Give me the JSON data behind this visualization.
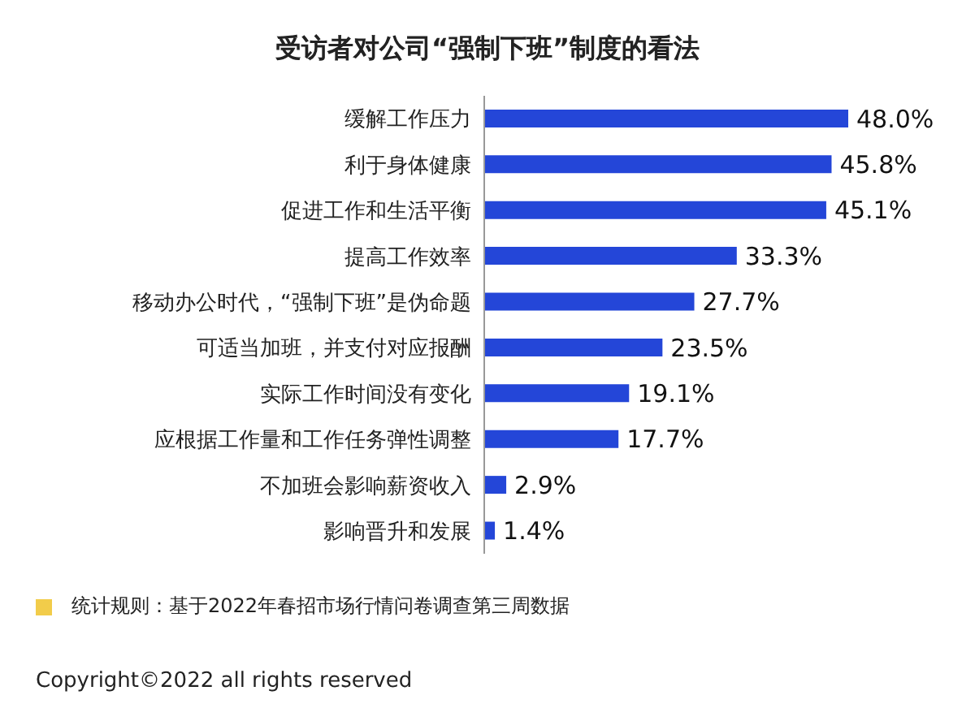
{
  "chart_data": {
    "type": "bar",
    "orientation": "horizontal",
    "title": "受访者对公司“强制下班”制度的看法",
    "categories": [
      "缓解工作压力",
      "利于身体健康",
      "促进工作和生活平衡",
      "提高工作效率",
      "移动办公时代，“强制下班”是伪命题",
      "可适当加班，并支付对应报酬",
      "实际工作时间没有变化",
      "应根据工作量和工作任务弹性调整",
      "不加班会影响薪资收入",
      "影响晋升和发展"
    ],
    "values": [
      48.0,
      45.8,
      45.1,
      33.3,
      27.7,
      23.5,
      19.1,
      17.7,
      2.9,
      1.4
    ],
    "value_labels": [
      "48.0%",
      "45.8%",
      "45.1%",
      "33.3%",
      "27.7%",
      "23.5%",
      "19.1%",
      "17.7%",
      "2.9%",
      "1.4%"
    ],
    "color": "#2446d8",
    "annotations": [
      "统计规则：基于2022年春招市场行情问卷调查第三周数据",
      "Copyright©2022 all rights reserved"
    ]
  }
}
